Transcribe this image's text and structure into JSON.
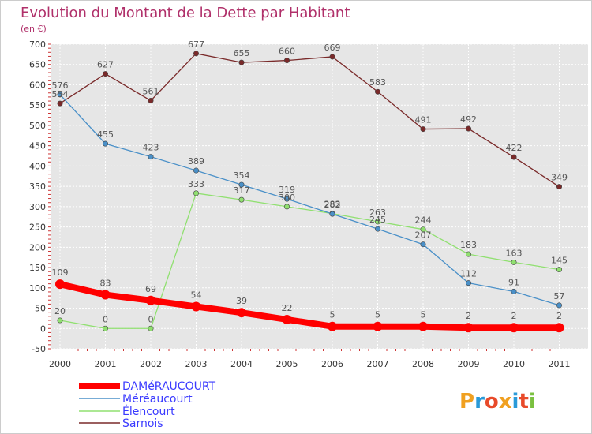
{
  "chart_data": {
    "type": "line",
    "title": "Evolution du Montant de la Dette par Habitant",
    "subtitle": "(en €)",
    "categories": [
      "2000",
      "2001",
      "2002",
      "2003",
      "2004",
      "2005",
      "2006",
      "2007",
      "2008",
      "2009",
      "2010",
      "2011"
    ],
    "ylim": [
      -50,
      700
    ],
    "yticks": [
      -50,
      0,
      50,
      100,
      150,
      200,
      250,
      300,
      350,
      400,
      450,
      500,
      550,
      600,
      650,
      700
    ],
    "grid": true,
    "legend_position": "bottom-left",
    "series": [
      {
        "name": "DAMéRAUCOURT",
        "color": "#ff0000",
        "values": [
          109,
          83,
          69,
          54,
          39,
          22,
          5,
          5,
          5,
          2,
          2,
          2
        ]
      },
      {
        "name": "Méréaucourt",
        "color": "#4a90c8",
        "values": [
          576,
          455,
          423,
          389,
          354,
          319,
          282,
          245,
          207,
          112,
          91,
          57
        ]
      },
      {
        "name": "Élencourt",
        "color": "#90e070",
        "values": [
          20,
          0,
          0,
          333,
          317,
          300,
          283,
          263,
          244,
          183,
          163,
          145
        ]
      },
      {
        "name": "Sarnois",
        "color": "#7a2a2a",
        "values": [
          554,
          627,
          561,
          677,
          655,
          660,
          669,
          583,
          491,
          492,
          422,
          349
        ]
      }
    ]
  },
  "logo": {
    "text": "Proxiti"
  }
}
